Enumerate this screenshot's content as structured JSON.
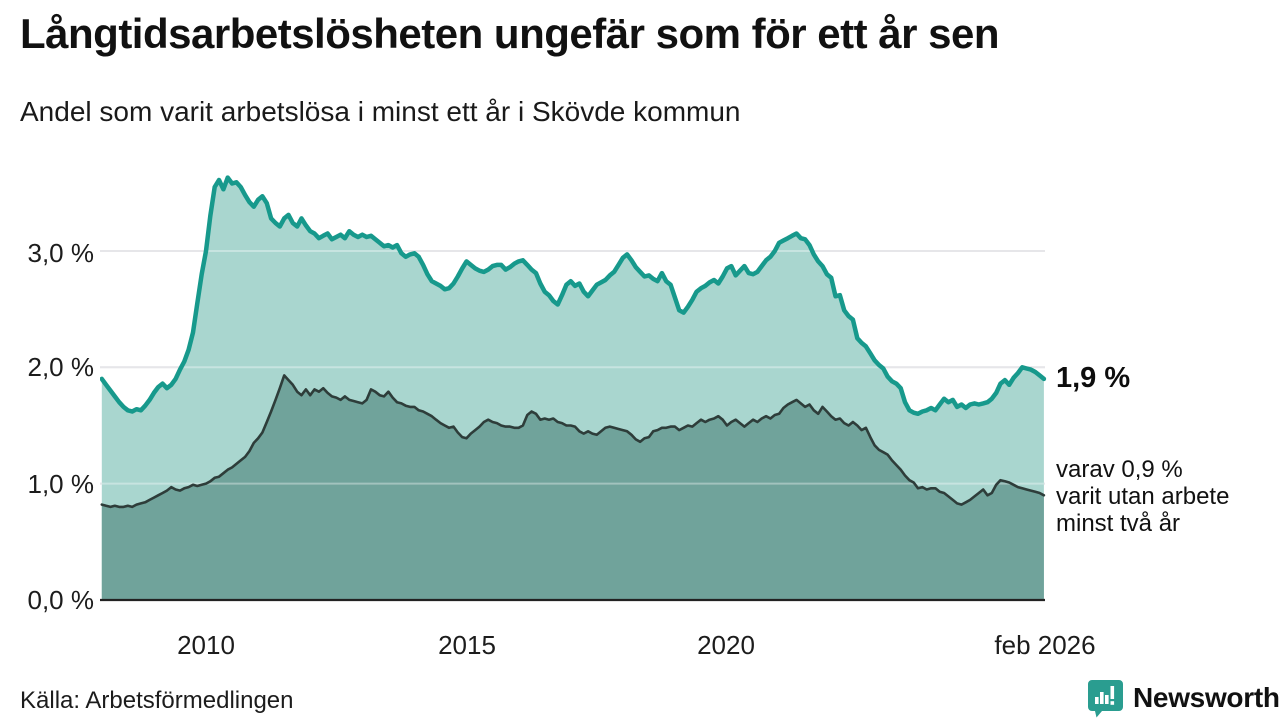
{
  "chart_data": {
    "type": "area",
    "title": "Långtidsarbetslösheten ungefär som för ett år sen",
    "subtitle": "Andel som varit arbetslösa i minst ett år i Skövde kommun",
    "x_start_year": 2008,
    "x_start_month": 1,
    "x_step_months": 1,
    "xlim": [
      2008.0,
      2026.0833
    ],
    "ylim": [
      0,
      3.74
    ],
    "grid": true,
    "legend": "end-labels",
    "colors": {
      "line_one_year": "#17998C",
      "fill_one_year": "#A9D6CF",
      "line_two_years": "#2E3D3A",
      "fill_two_years": "#70A39B",
      "gridline": "#D9D9DE",
      "axis": "#222222",
      "brand_teal": "#2A9D90"
    },
    "axes": {
      "y_ticks": [
        {
          "label": "3,0 %",
          "value": 3.0
        },
        {
          "label": "2,0 %",
          "value": 2.0
        },
        {
          "label": "1,0 %",
          "value": 1.0
        },
        {
          "label": "0,0 %",
          "value": 0.0
        }
      ],
      "x_ticks": [
        {
          "label": "2010",
          "year": 2010.0
        },
        {
          "label": "2015",
          "year": 2015.0
        },
        {
          "label": "2020",
          "year": 2020.0
        },
        {
          "label": "feb 2026",
          "year": 2026.0833
        }
      ]
    },
    "series": [
      {
        "name": "Andel arbetslösa minst ett år",
        "end_label": "1,9 %",
        "values": [
          1.9,
          1.85,
          1.8,
          1.75,
          1.7,
          1.66,
          1.63,
          1.62,
          1.64,
          1.63,
          1.67,
          1.72,
          1.78,
          1.83,
          1.86,
          1.82,
          1.85,
          1.9,
          1.98,
          2.05,
          2.15,
          2.3,
          2.55,
          2.8,
          3.0,
          3.3,
          3.55,
          3.61,
          3.53,
          3.63,
          3.58,
          3.59,
          3.55,
          3.48,
          3.42,
          3.38,
          3.44,
          3.47,
          3.41,
          3.28,
          3.24,
          3.21,
          3.28,
          3.31,
          3.24,
          3.21,
          3.28,
          3.22,
          3.17,
          3.15,
          3.11,
          3.13,
          3.15,
          3.1,
          3.12,
          3.14,
          3.11,
          3.17,
          3.14,
          3.12,
          3.14,
          3.12,
          3.13,
          3.1,
          3.07,
          3.04,
          3.05,
          3.03,
          3.05,
          2.98,
          2.95,
          2.97,
          2.98,
          2.95,
          2.88,
          2.8,
          2.74,
          2.72,
          2.7,
          2.67,
          2.68,
          2.72,
          2.78,
          2.85,
          2.91,
          2.88,
          2.85,
          2.83,
          2.82,
          2.84,
          2.87,
          2.88,
          2.88,
          2.84,
          2.86,
          2.89,
          2.91,
          2.92,
          2.88,
          2.84,
          2.81,
          2.72,
          2.65,
          2.62,
          2.57,
          2.54,
          2.62,
          2.71,
          2.74,
          2.7,
          2.72,
          2.65,
          2.61,
          2.66,
          2.71,
          2.73,
          2.75,
          2.79,
          2.82,
          2.88,
          2.94,
          2.97,
          2.92,
          2.86,
          2.82,
          2.78,
          2.79,
          2.76,
          2.74,
          2.81,
          2.74,
          2.71,
          2.6,
          2.49,
          2.47,
          2.52,
          2.58,
          2.65,
          2.68,
          2.7,
          2.73,
          2.75,
          2.72,
          2.78,
          2.85,
          2.87,
          2.79,
          2.83,
          2.87,
          2.81,
          2.8,
          2.82,
          2.87,
          2.92,
          2.95,
          3.0,
          3.07,
          3.09,
          3.11,
          3.13,
          3.15,
          3.11,
          3.1,
          3.05,
          2.97,
          2.91,
          2.87,
          2.8,
          2.77,
          2.61,
          2.62,
          2.49,
          2.44,
          2.41,
          2.25,
          2.21,
          2.18,
          2.12,
          2.06,
          2.02,
          1.99,
          1.92,
          1.88,
          1.86,
          1.82,
          1.7,
          1.63,
          1.61,
          1.6,
          1.62,
          1.63,
          1.65,
          1.63,
          1.68,
          1.73,
          1.7,
          1.72,
          1.66,
          1.68,
          1.65,
          1.68,
          1.69,
          1.68,
          1.69,
          1.7,
          1.73,
          1.78,
          1.86,
          1.89,
          1.85,
          1.91,
          1.95,
          2.0,
          1.99,
          1.98,
          1.96,
          1.93,
          1.9
        ]
      },
      {
        "name": "Andel arbetslösa minst två år",
        "end_label": "varav 0,9 % varit utan arbete minst två år",
        "values": [
          0.82,
          0.81,
          0.8,
          0.81,
          0.8,
          0.8,
          0.81,
          0.8,
          0.82,
          0.83,
          0.84,
          0.86,
          0.88,
          0.9,
          0.92,
          0.94,
          0.97,
          0.95,
          0.94,
          0.96,
          0.97,
          0.99,
          0.98,
          0.99,
          1.0,
          1.02,
          1.05,
          1.06,
          1.09,
          1.12,
          1.14,
          1.17,
          1.2,
          1.23,
          1.28,
          1.35,
          1.39,
          1.44,
          1.53,
          1.62,
          1.72,
          1.82,
          1.93,
          1.89,
          1.85,
          1.79,
          1.76,
          1.81,
          1.76,
          1.81,
          1.79,
          1.82,
          1.78,
          1.75,
          1.74,
          1.72,
          1.75,
          1.72,
          1.71,
          1.7,
          1.69,
          1.72,
          1.81,
          1.79,
          1.76,
          1.75,
          1.79,
          1.74,
          1.7,
          1.69,
          1.67,
          1.66,
          1.66,
          1.63,
          1.62,
          1.6,
          1.58,
          1.55,
          1.52,
          1.5,
          1.48,
          1.49,
          1.44,
          1.4,
          1.39,
          1.43,
          1.46,
          1.49,
          1.53,
          1.55,
          1.53,
          1.52,
          1.5,
          1.49,
          1.49,
          1.48,
          1.48,
          1.5,
          1.59,
          1.62,
          1.6,
          1.55,
          1.56,
          1.55,
          1.56,
          1.53,
          1.52,
          1.5,
          1.5,
          1.49,
          1.45,
          1.43,
          1.45,
          1.43,
          1.42,
          1.45,
          1.48,
          1.49,
          1.48,
          1.47,
          1.46,
          1.45,
          1.42,
          1.38,
          1.36,
          1.39,
          1.4,
          1.45,
          1.46,
          1.48,
          1.48,
          1.49,
          1.49,
          1.46,
          1.48,
          1.5,
          1.49,
          1.52,
          1.55,
          1.53,
          1.55,
          1.56,
          1.58,
          1.55,
          1.5,
          1.53,
          1.55,
          1.52,
          1.49,
          1.52,
          1.55,
          1.53,
          1.56,
          1.58,
          1.56,
          1.59,
          1.6,
          1.65,
          1.68,
          1.7,
          1.72,
          1.69,
          1.66,
          1.68,
          1.63,
          1.6,
          1.66,
          1.62,
          1.58,
          1.55,
          1.56,
          1.52,
          1.5,
          1.53,
          1.5,
          1.46,
          1.48,
          1.4,
          1.33,
          1.29,
          1.27,
          1.25,
          1.2,
          1.16,
          1.12,
          1.07,
          1.03,
          1.01,
          0.96,
          0.97,
          0.95,
          0.96,
          0.96,
          0.93,
          0.92,
          0.89,
          0.86,
          0.83,
          0.82,
          0.84,
          0.86,
          0.89,
          0.92,
          0.95,
          0.9,
          0.92,
          0.99,
          1.03,
          1.02,
          1.01,
          0.99,
          0.97,
          0.96,
          0.95,
          0.94,
          0.93,
          0.92,
          0.9
        ]
      }
    ]
  },
  "annotations": {
    "end_value": "1,9 %",
    "end_sub_lines": [
      "varav 0,9 %",
      "varit utan arbete",
      "minst två år"
    ]
  },
  "footer": {
    "source": "Källa: Arbetsförmedlingen",
    "brand": "Newsworthy"
  }
}
